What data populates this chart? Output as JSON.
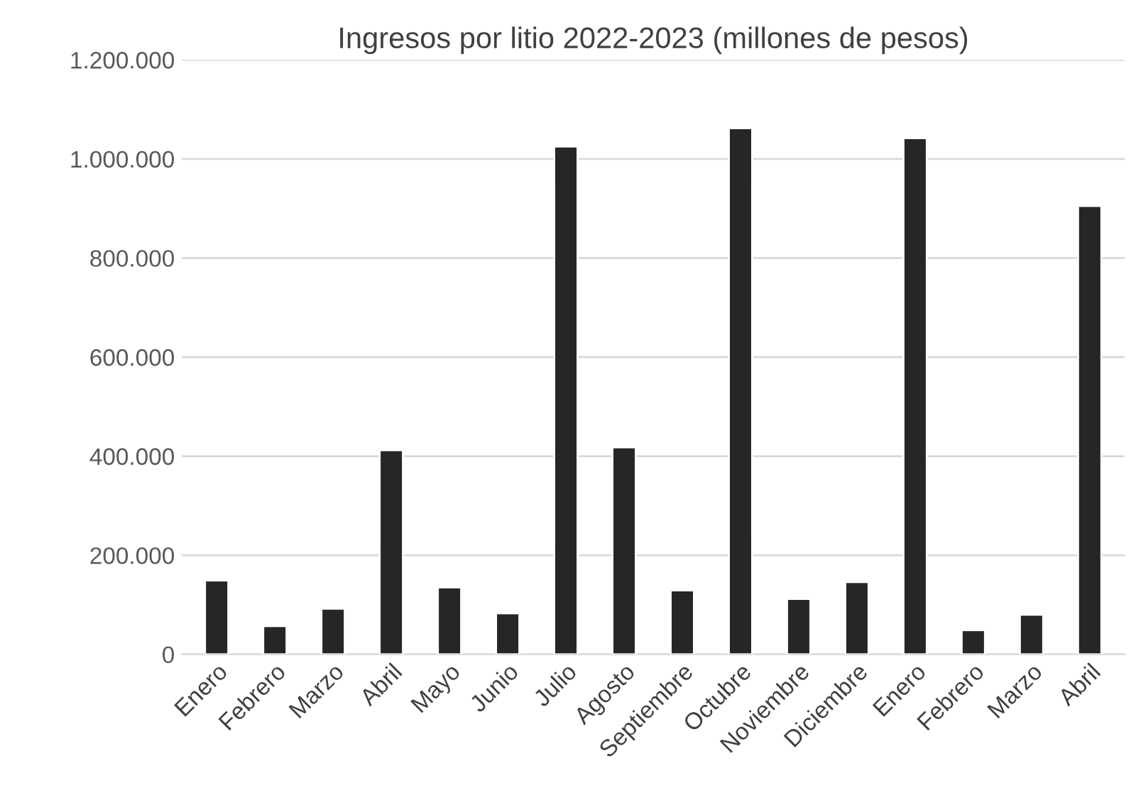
{
  "chart_data": {
    "type": "bar",
    "title": "Ingresos por litio 2022-2023 (millones de pesos)",
    "categories": [
      "Enero",
      "Febrero",
      "Marzo",
      "Abril",
      "Mayo",
      "Junio",
      "Julio",
      "Agosto",
      "Septiembre",
      "Octubre",
      "Noviembre",
      "Diciembre",
      "Enero",
      "Febrero",
      "Marzo",
      "Abril"
    ],
    "values": [
      149000,
      57000,
      92000,
      412000,
      135000,
      83000,
      1025000,
      418000,
      129000,
      1062000,
      112000,
      146000,
      1042000,
      49000,
      80000,
      905000
    ],
    "color": "#262626",
    "ylim": [
      0,
      1200000
    ],
    "yticks": [
      {
        "value": 0,
        "label": "0"
      },
      {
        "value": 200000,
        "label": "200.000"
      },
      {
        "value": 400000,
        "label": "400.000"
      },
      {
        "value": 600000,
        "label": "600.000"
      },
      {
        "value": 800000,
        "label": "800.000"
      },
      {
        "value": 1000000,
        "label": "1.000.000"
      },
      {
        "value": 1200000,
        "label": "1.200.000"
      }
    ],
    "grid": "y"
  }
}
